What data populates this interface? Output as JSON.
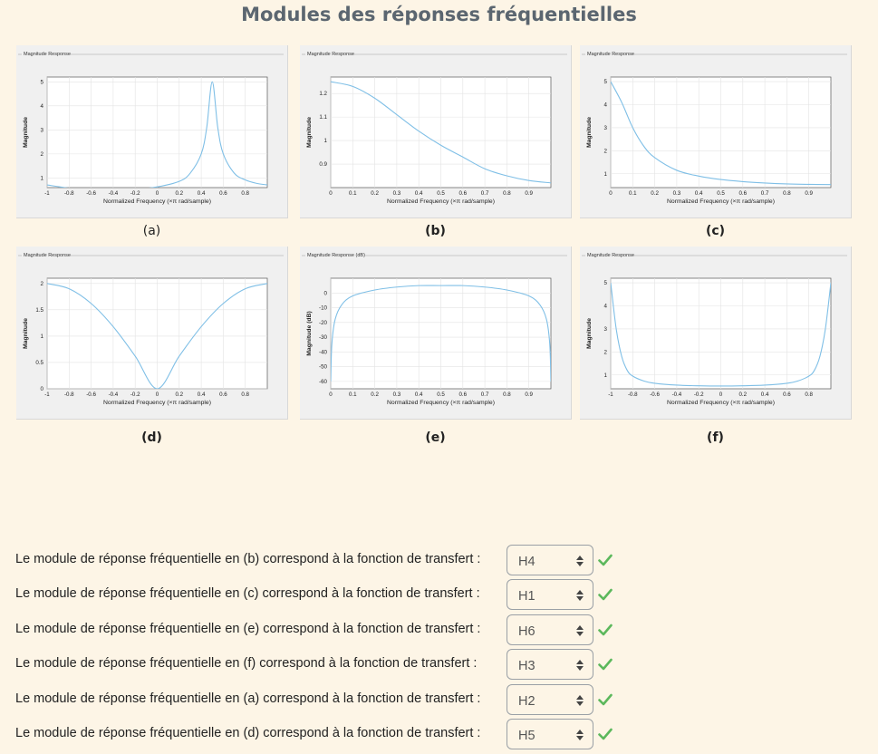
{
  "title": "Modules des réponses fréquentielles",
  "colors": {
    "curve": "#7fbfe6",
    "check": "#5cb85c",
    "title": "#5b6670"
  },
  "panels": [
    {
      "id": "a",
      "caption": "(a)",
      "caption_bold": false,
      "header": "Magnitude Response",
      "xlabel": "Normalized Frequency (×π rad/sample)",
      "ylabel": "Magnitude",
      "xlim": [
        -1,
        1
      ],
      "ylim": [
        0.6,
        5.2
      ],
      "xticks": [
        -1,
        -0.8,
        -0.6,
        -0.4,
        -0.2,
        0,
        0.2,
        0.4,
        0.6,
        0.8
      ],
      "yticks": [
        1,
        2,
        3,
        4,
        5
      ]
    },
    {
      "id": "b",
      "caption": "(b)",
      "caption_bold": true,
      "header": "Magnitude Response",
      "xlabel": "Normalized Frequency (×π rad/sample)",
      "ylabel": "Magnitude",
      "xlim": [
        0,
        1
      ],
      "ylim": [
        0.8,
        1.27
      ],
      "xticks": [
        0,
        0.1,
        0.2,
        0.3,
        0.4,
        0.5,
        0.6,
        0.7,
        0.8,
        0.9
      ],
      "yticks": [
        0.9,
        1,
        1.1,
        1.2
      ]
    },
    {
      "id": "c",
      "caption": "(c)",
      "caption_bold": true,
      "header": "Magnitude Response",
      "xlabel": "Normalized Frequency (×π rad/sample)",
      "ylabel": "Magnitude",
      "xlim": [
        0,
        1
      ],
      "ylim": [
        0.4,
        5.2
      ],
      "xticks": [
        0,
        0.1,
        0.2,
        0.3,
        0.4,
        0.5,
        0.6,
        0.7,
        0.8,
        0.9
      ],
      "yticks": [
        1,
        2,
        3,
        4,
        5
      ]
    },
    {
      "id": "d",
      "caption": "(d)",
      "caption_bold": true,
      "header": "Magnitude Response",
      "xlabel": "Normalized Frequency (×π rad/sample)",
      "ylabel": "Magnitude",
      "xlim": [
        -1,
        1
      ],
      "ylim": [
        0,
        2.1
      ],
      "xticks": [
        -1,
        -0.8,
        -0.6,
        -0.4,
        -0.2,
        0,
        0.2,
        0.4,
        0.6,
        0.8
      ],
      "yticks": [
        0,
        0.5,
        1,
        1.5,
        2
      ]
    },
    {
      "id": "e",
      "caption": "(e)",
      "caption_bold": true,
      "header": "Magnitude Response (dB)",
      "xlabel": "Normalized Frequency (×π rad/sample)",
      "ylabel": "Magnitude (dB)",
      "xlim": [
        0,
        1
      ],
      "ylim": [
        -65,
        10
      ],
      "xticks": [
        0,
        0.1,
        0.2,
        0.3,
        0.4,
        0.5,
        0.6,
        0.7,
        0.8,
        0.9
      ],
      "yticks": [
        -60,
        -50,
        -40,
        -30,
        -20,
        -10,
        0
      ]
    },
    {
      "id": "f",
      "caption": "(f)",
      "caption_bold": true,
      "header": "Magnitude Response",
      "xlabel": "Normalized Frequency (×π rad/sample)",
      "ylabel": "Magnitude",
      "xlim": [
        -1,
        1
      ],
      "ylim": [
        0.4,
        5.2
      ],
      "xticks": [
        -1,
        -0.8,
        -0.6,
        -0.4,
        -0.2,
        0,
        0.2,
        0.4,
        0.6,
        0.8
      ],
      "yticks": [
        1,
        2,
        3,
        4,
        5
      ]
    }
  ],
  "chart_data": [
    {
      "type": "line",
      "id": "a",
      "title": "Magnitude Response",
      "xlabel": "Normalized Frequency (×π rad/sample)",
      "ylabel": "Magnitude",
      "x": [
        -1,
        -0.8,
        -0.6,
        -0.4,
        -0.2,
        0,
        0.2,
        0.3,
        0.4,
        0.45,
        0.5,
        0.55,
        0.6,
        0.7,
        0.8,
        0.9,
        1
      ],
      "y": [
        0.71,
        0.58,
        0.51,
        0.5,
        0.53,
        0.63,
        0.86,
        1.2,
        2.0,
        3.1,
        5.0,
        3.1,
        2.0,
        1.2,
        0.92,
        0.78,
        0.71
      ]
    },
    {
      "type": "line",
      "id": "b",
      "title": "Magnitude Response",
      "xlabel": "Normalized Frequency (×π rad/sample)",
      "ylabel": "Magnitude",
      "x": [
        0,
        0.1,
        0.2,
        0.3,
        0.4,
        0.5,
        0.6,
        0.7,
        0.8,
        0.9,
        1
      ],
      "y": [
        1.25,
        1.23,
        1.18,
        1.11,
        1.04,
        0.98,
        0.93,
        0.88,
        0.85,
        0.83,
        0.82
      ]
    },
    {
      "type": "line",
      "id": "c",
      "title": "Magnitude Response",
      "xlabel": "Normalized Frequency (×π rad/sample)",
      "ylabel": "Magnitude",
      "x": [
        0,
        0.05,
        0.1,
        0.15,
        0.2,
        0.3,
        0.4,
        0.5,
        0.6,
        0.7,
        0.8,
        0.9,
        1
      ],
      "y": [
        5.0,
        4.1,
        3.0,
        2.2,
        1.7,
        1.15,
        0.9,
        0.75,
        0.66,
        0.6,
        0.56,
        0.54,
        0.53
      ]
    },
    {
      "type": "line",
      "id": "d",
      "title": "Magnitude Response",
      "xlabel": "Normalized Frequency (×π rad/sample)",
      "ylabel": "Magnitude",
      "x": [
        -1,
        -0.8,
        -0.6,
        -0.4,
        -0.2,
        0,
        0.2,
        0.4,
        0.6,
        0.8,
        1
      ],
      "y": [
        2.0,
        1.9,
        1.62,
        1.18,
        0.62,
        0,
        0.62,
        1.18,
        1.62,
        1.9,
        2.0
      ]
    },
    {
      "type": "line",
      "id": "e",
      "title": "Magnitude Response (dB)",
      "xlabel": "Normalized Frequency (×π rad/sample)",
      "ylabel": "Magnitude (dB)",
      "x": [
        0,
        0.005,
        0.02,
        0.05,
        0.1,
        0.2,
        0.3,
        0.4,
        0.5,
        0.6,
        0.7,
        0.8,
        0.9,
        0.95,
        0.98,
        0.995,
        1
      ],
      "y": [
        -60,
        -35,
        -18,
        -8,
        -2,
        2,
        4,
        5,
        5,
        5,
        4,
        2,
        -2,
        -8,
        -18,
        -35,
        -60
      ]
    },
    {
      "type": "line",
      "id": "f",
      "title": "Magnitude Response",
      "xlabel": "Normalized Frequency (×π rad/sample)",
      "ylabel": "Magnitude",
      "x": [
        -1,
        -0.95,
        -0.9,
        -0.85,
        -0.8,
        -0.7,
        -0.6,
        -0.4,
        -0.2,
        0,
        0.2,
        0.4,
        0.6,
        0.7,
        0.8,
        0.85,
        0.9,
        0.95,
        1
      ],
      "y": [
        5.0,
        3.0,
        1.8,
        1.2,
        0.95,
        0.74,
        0.64,
        0.56,
        0.53,
        0.52,
        0.53,
        0.56,
        0.64,
        0.74,
        0.95,
        1.2,
        1.8,
        3.0,
        5.0
      ]
    }
  ],
  "questions": [
    {
      "text": "Le module de réponse fréquentielle en (b)  correspond à la fonction de transfert :",
      "answer": "H4"
    },
    {
      "text": "Le module de réponse fréquentielle en (c)  correspond à la fonction de transfert :",
      "answer": "H1"
    },
    {
      "text": "Le module de réponse fréquentielle en (e)  correspond à la fonction de transfert :",
      "answer": "H6"
    },
    {
      "text": "Le module de réponse fréquentielle en (f)  correspond à la fonction de transfert :",
      "answer": "H3"
    },
    {
      "text": "Le module de réponse fréquentielle en (a)  correspond à la fonction de transfert :",
      "answer": "H2"
    },
    {
      "text": "Le module de réponse fréquentielle en (d)  correspond à la fonction de transfert :",
      "answer": "H5"
    }
  ]
}
